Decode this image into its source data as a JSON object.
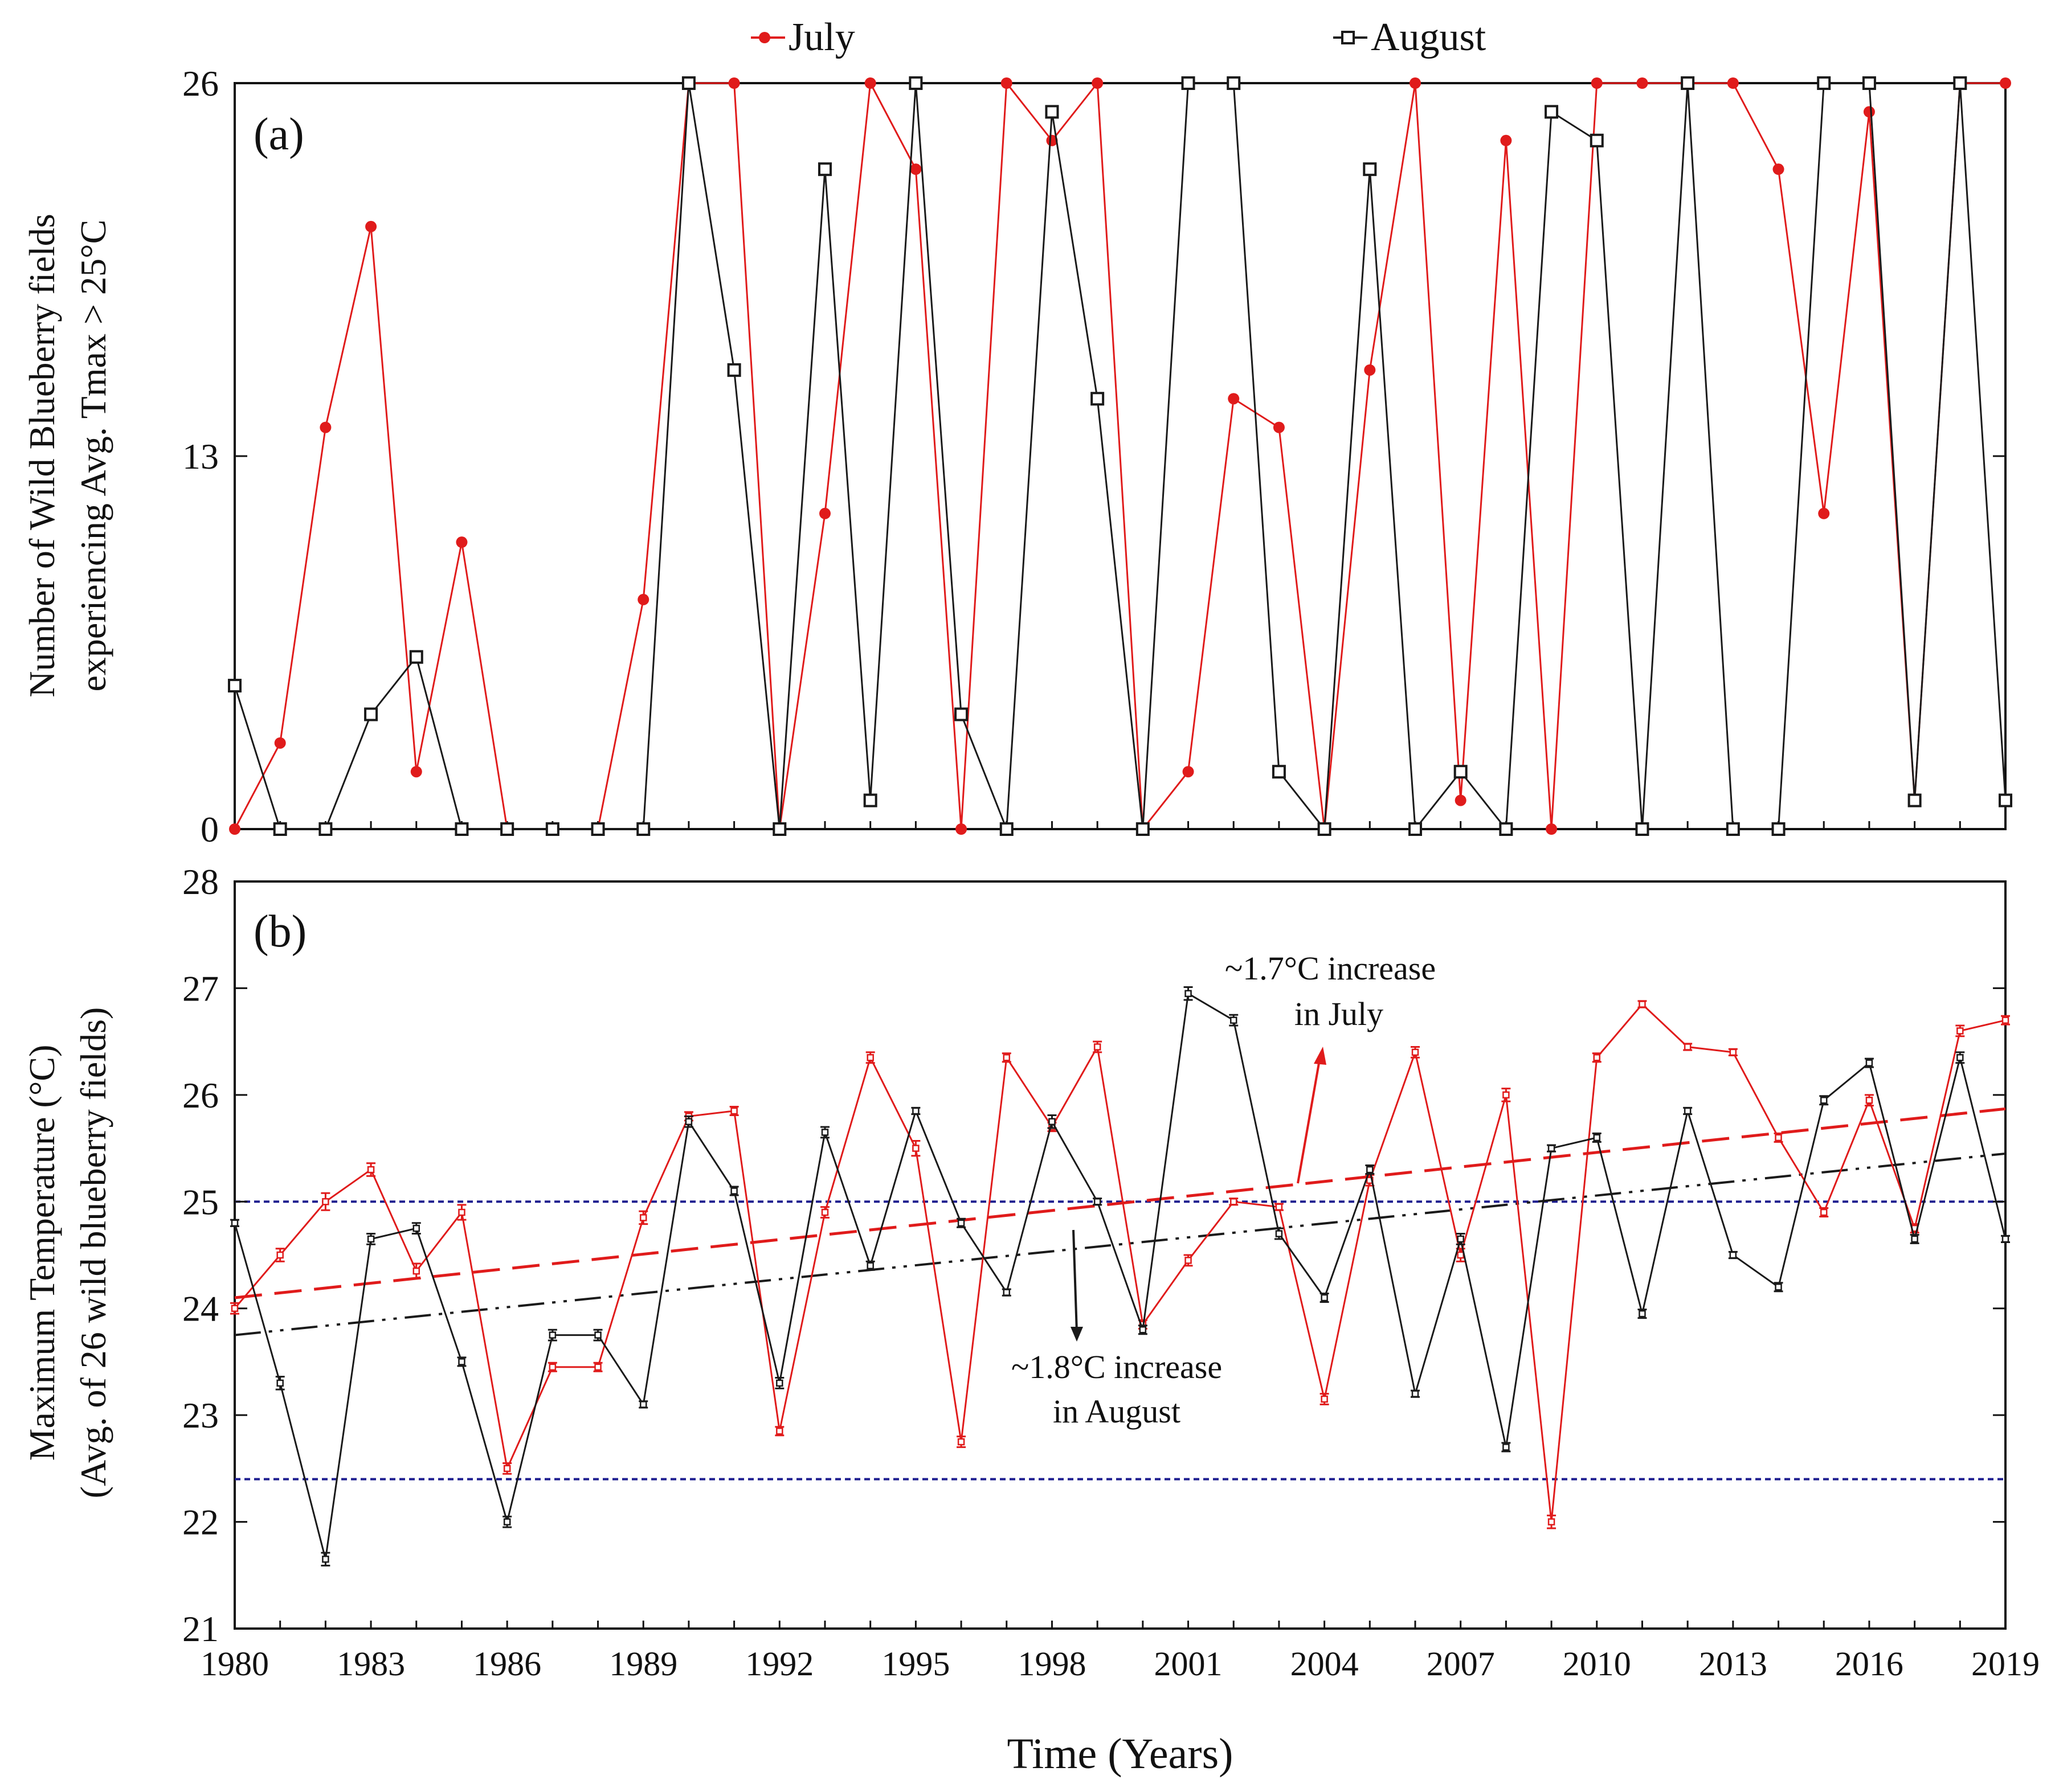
{
  "chart_data": {
    "x_tick_labels": [
      "1980",
      "1983",
      "1986",
      "1989",
      "1992",
      "1995",
      "1998",
      "2001",
      "2004",
      "2007",
      "2010",
      "2013",
      "2016",
      "2019"
    ],
    "xlabel": "Time (Years)",
    "legend": {
      "position": "top-center",
      "july": {
        "label": "July",
        "color": "#e01b1b",
        "marker": "filled-circle"
      },
      "august": {
        "label": "August",
        "color": "#1a1a1a",
        "marker": "open-square"
      }
    },
    "panels": [
      {
        "id": "a",
        "panel_label": "(a)",
        "type": "line",
        "ylabel_line1": "Number of Wild Blueberry fields",
        "ylabel_line2": "experiencing Avg. Tmax > 25°C",
        "ylim": [
          0,
          26
        ],
        "yticks": [
          0,
          13,
          26
        ],
        "x": [
          1980,
          1981,
          1982,
          1983,
          1984,
          1985,
          1986,
          1987,
          1988,
          1989,
          1990,
          1991,
          1992,
          1993,
          1994,
          1995,
          1996,
          1997,
          1998,
          1999,
          2000,
          2001,
          2002,
          2003,
          2004,
          2005,
          2006,
          2007,
          2008,
          2009,
          2010,
          2011,
          2012,
          2013,
          2014,
          2015,
          2016,
          2017,
          2018,
          2019
        ],
        "series": [
          {
            "name": "July",
            "values": [
              0,
              3,
              14,
              21,
              2,
              10,
              0,
              0,
              0,
              8,
              26,
              26,
              0,
              11,
              26,
              23,
              0,
              26,
              24,
              26,
              0,
              2,
              15,
              14,
              0,
              16,
              26,
              1,
              24,
              0,
              26,
              26,
              26,
              26,
              23,
              11,
              25,
              1,
              26,
              26
            ]
          },
          {
            "name": "August",
            "values": [
              5,
              0,
              0,
              4,
              6,
              0,
              0,
              0,
              0,
              0,
              26,
              16,
              0,
              23,
              1,
              26,
              4,
              0,
              25,
              15,
              0,
              26,
              26,
              2,
              0,
              23,
              0,
              2,
              0,
              25,
              24,
              0,
              26,
              0,
              0,
              26,
              26,
              1,
              26,
              1
            ]
          }
        ]
      },
      {
        "id": "b",
        "panel_label": "(b)",
        "type": "line",
        "ylabel_line1": "Maximum Temperature (°C)",
        "ylabel_line2": "(Avg. of 26 wild blueberry fields)",
        "ylim": [
          21,
          28
        ],
        "yticks": [
          21,
          22,
          23,
          24,
          25,
          26,
          27,
          28
        ],
        "x": [
          1980,
          1981,
          1982,
          1983,
          1984,
          1985,
          1986,
          1987,
          1988,
          1989,
          1990,
          1991,
          1992,
          1993,
          1994,
          1995,
          1996,
          1997,
          1998,
          1999,
          2000,
          2001,
          2002,
          2003,
          2004,
          2005,
          2006,
          2007,
          2008,
          2009,
          2010,
          2011,
          2012,
          2013,
          2014,
          2015,
          2016,
          2017,
          2018,
          2019
        ],
        "series": [
          {
            "name": "July",
            "values": [
              24.0,
              24.5,
              25.0,
              25.3,
              24.35,
              24.9,
              22.5,
              23.45,
              23.45,
              24.85,
              25.8,
              25.85,
              22.85,
              24.9,
              26.35,
              25.5,
              22.75,
              26.35,
              25.7,
              26.45,
              23.85,
              24.45,
              25.0,
              24.95,
              23.15,
              25.2,
              26.4,
              24.5,
              26.0,
              22.0,
              26.35,
              26.85,
              26.45,
              26.4,
              25.6,
              24.9,
              25.95,
              24.75,
              26.6,
              26.7
            ],
            "errors": [
              0.05,
              0.06,
              0.08,
              0.06,
              0.07,
              0.07,
              0.05,
              0.04,
              0.04,
              0.06,
              0.04,
              0.04,
              0.04,
              0.05,
              0.05,
              0.07,
              0.05,
              0.04,
              0.04,
              0.05,
              0.04,
              0.05,
              0.03,
              0.03,
              0.05,
              0.05,
              0.05,
              0.06,
              0.06,
              0.06,
              0.04,
              0.03,
              0.03,
              0.03,
              0.04,
              0.04,
              0.05,
              0.04,
              0.05,
              0.04
            ]
          },
          {
            "name": "August",
            "values": [
              24.8,
              23.3,
              21.65,
              24.65,
              24.75,
              23.5,
              22.0,
              23.75,
              23.75,
              23.1,
              25.75,
              25.1,
              23.3,
              25.65,
              24.4,
              25.85,
              24.8,
              24.15,
              25.75,
              25.0,
              23.8,
              26.95,
              26.7,
              24.7,
              24.1,
              25.3,
              23.2,
              24.65,
              22.7,
              25.5,
              25.6,
              23.95,
              25.85,
              24.5,
              24.2,
              25.95,
              26.3,
              24.65,
              26.35,
              24.65
            ],
            "errors": [
              0.03,
              0.06,
              0.06,
              0.05,
              0.05,
              0.04,
              0.05,
              0.05,
              0.05,
              0.03,
              0.05,
              0.04,
              0.05,
              0.05,
              0.04,
              0.03,
              0.04,
              0.03,
              0.06,
              0.03,
              0.04,
              0.06,
              0.05,
              0.05,
              0.04,
              0.04,
              0.03,
              0.05,
              0.04,
              0.03,
              0.04,
              0.04,
              0.03,
              0.03,
              0.04,
              0.04,
              0.04,
              0.04,
              0.05,
              0.03
            ]
          }
        ],
        "trendlines": [
          {
            "series": "July",
            "style": "long-dash",
            "from": [
              1980,
              24.1
            ],
            "to": [
              2019,
              25.87
            ]
          },
          {
            "series": "August",
            "style": "dash-dot-dot",
            "from": [
              1980,
              23.75
            ],
            "to": [
              2019,
              25.45
            ]
          }
        ],
        "reference_lines": [
          22.4,
          25.0
        ],
        "reference_color": "#1d1d8f",
        "annotations": [
          {
            "line1": "~1.7°C increase",
            "line2": "in July",
            "color": "#111",
            "arrow_color": "#e01b1b"
          },
          {
            "line1": "~1.8°C increase",
            "line2": "in August",
            "color": "#111",
            "arrow_color": "#1a1a1a"
          }
        ]
      }
    ]
  }
}
